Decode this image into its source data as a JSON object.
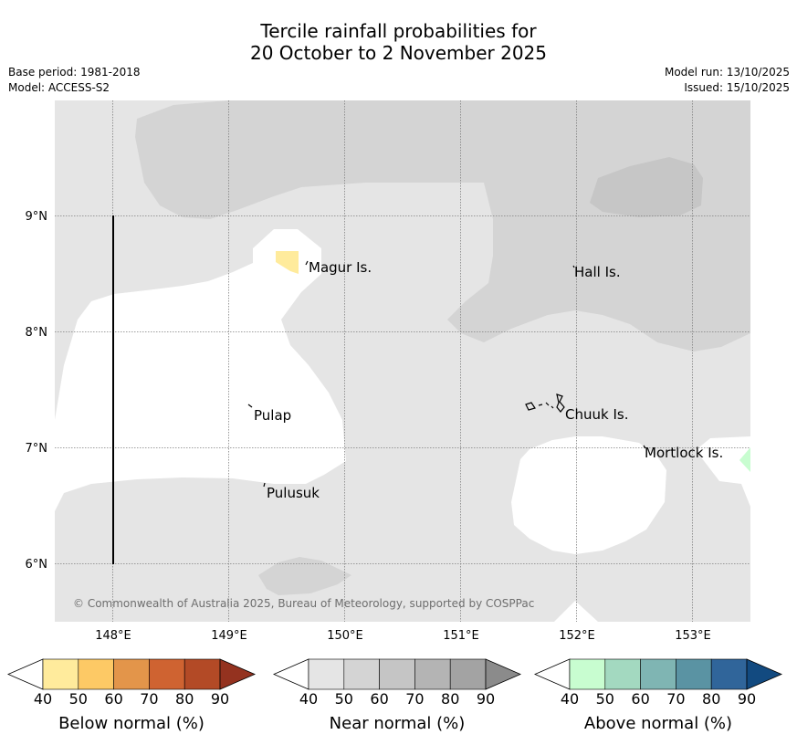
{
  "title": {
    "line1": "Tercile rainfall probabilities for",
    "line2": "20 October to 2 November 2025"
  },
  "meta_left": {
    "base_period": "Base period: 1981-2018",
    "model": "Model: ACCESS-S2"
  },
  "meta_right": {
    "model_run": "Model run: 13/10/2025",
    "issued": "Issued: 15/10/2025"
  },
  "map": {
    "lon_ticks": [
      "148°E",
      "149°E",
      "150°E",
      "151°E",
      "152°E",
      "153°E"
    ],
    "lat_ticks": [
      "9°N",
      "8°N",
      "7°N",
      "6°N"
    ],
    "places": [
      {
        "name": "Magur Is."
      },
      {
        "name": "Hall Is."
      },
      {
        "name": "Pulap"
      },
      {
        "name": "Chuuk Is."
      },
      {
        "name": "Mortlock Is."
      },
      {
        "name": "Pulusuk"
      }
    ],
    "copyright": "© Commonwealth of Australia 2025, Bureau of Meteorology, supported by COSPPac"
  },
  "colorbars": [
    {
      "label": "Below normal (%)",
      "ticks": [
        "40",
        "50",
        "60",
        "70",
        "80",
        "90"
      ],
      "colors": [
        "#ffffff",
        "#ffeb9c",
        "#fdc965",
        "#e3954a",
        "#cf6331",
        "#b34a26",
        "#94321f"
      ]
    },
    {
      "label": "Near normal (%)",
      "ticks": [
        "40",
        "50",
        "60",
        "70",
        "80",
        "90"
      ],
      "colors": [
        "#ffffff",
        "#e5e5e5",
        "#d4d4d4",
        "#c5c5c5",
        "#b4b4b4",
        "#a3a3a3",
        "#8b8b8b"
      ]
    },
    {
      "label": "Above normal (%)",
      "ticks": [
        "40",
        "50",
        "60",
        "70",
        "80",
        "90"
      ],
      "colors": [
        "#ffffff",
        "#c8fdd0",
        "#a3d9c0",
        "#7fb5b3",
        "#5a93a3",
        "#30659a",
        "#124a80"
      ]
    }
  ]
}
